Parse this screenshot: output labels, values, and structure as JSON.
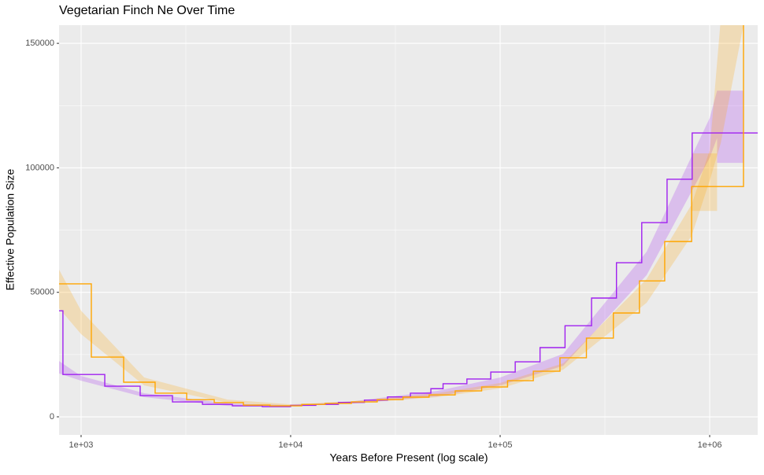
{
  "chart_data": {
    "type": "step",
    "title": "Vegetarian Finch Ne Over Time",
    "x_label": "Years Before Present (log scale)",
    "y_label": "Effective Population Size",
    "x_scale": "log",
    "xlim": [
      785,
      1695000
    ],
    "ylim": [
      -7260,
      157300
    ],
    "xticks": [
      {
        "value": 1000,
        "label": "1e+03"
      },
      {
        "value": 10000,
        "label": "1e+04"
      },
      {
        "value": 100000,
        "label": "1e+05"
      },
      {
        "value": 1000000,
        "label": "1e+06"
      }
    ],
    "yticks": [
      0,
      50000,
      100000,
      150000
    ],
    "grid": true,
    "minor_grid": true,
    "series": [
      {
        "color": "#a020f0",
        "x": [
          785,
          819,
          1297,
          1914,
          2729,
          3795,
          5271,
          7325,
          10000,
          13200,
          16900,
          22500,
          29000,
          37300,
          46700,
          53400,
          69400,
          90200,
          118000,
          155000,
          204000,
          273000,
          359000,
          474000,
          626000,
          825000,
          1090000
        ],
        "values": [
          42600,
          17000,
          12300,
          8500,
          6000,
          5000,
          4400,
          4100,
          4600,
          5000,
          5800,
          6700,
          8000,
          9500,
          11300,
          13300,
          15200,
          18000,
          22100,
          27800,
          36600,
          47700,
          61900,
          78000,
          95400,
          114000,
          114000
        ],
        "ribbon": {
          "x": [
            785,
            1000,
            2000,
            5000,
            10000,
            20000,
            50000,
            100000,
            200000,
            500000,
            1000000,
            1085000
          ],
          "lower": [
            17400,
            14500,
            7900,
            4400,
            4100,
            5400,
            8200,
            12600,
            20500,
            56900,
            104000,
            112000
          ],
          "upper": [
            22400,
            16400,
            9500,
            5400,
            4700,
            6300,
            10400,
            15800,
            25300,
            66300,
            120000,
            131000
          ]
        },
        "box": {
          "x": [
            1085000,
            1450000
          ],
          "lower": 102000,
          "upper": 131000
        }
      },
      {
        "color": "#ffa500",
        "x": [
          785,
          1119,
          1596,
          2256,
          3190,
          4320,
          5950,
          7980,
          11300,
          14600,
          19500,
          25900,
          34400,
          45800,
          61000,
          81600,
          108500,
          144000,
          193000,
          258000,
          347000,
          462000,
          610000,
          820000,
          1450000
        ],
        "values": [
          53400,
          24000,
          13900,
          9500,
          6900,
          5700,
          4700,
          4400,
          5000,
          5400,
          6000,
          6900,
          7900,
          8800,
          10400,
          12000,
          14500,
          18300,
          23700,
          31600,
          41700,
          54600,
          70400,
          92500,
          200000
        ],
        "ribbon": {
          "x": [
            785,
            1000,
            2000,
            5000,
            10000,
            20000,
            50000,
            100000,
            200000,
            500000,
            820000,
            1000000,
            1130000,
            1470000
          ],
          "lower": [
            43600,
            33200,
            12600,
            5700,
            4400,
            5400,
            7900,
            11400,
            18900,
            45800,
            72700,
            94800,
            110000,
            160000
          ],
          "upper": [
            59100,
            42600,
            15800,
            6900,
            5000,
            6300,
            9500,
            13600,
            21500,
            55300,
            85300,
            107000,
            160000,
            250000
          ]
        },
        "box": {
          "x": [
            820000,
            1085000
          ],
          "lower": 82700,
          "upper": 105800
        }
      }
    ]
  }
}
